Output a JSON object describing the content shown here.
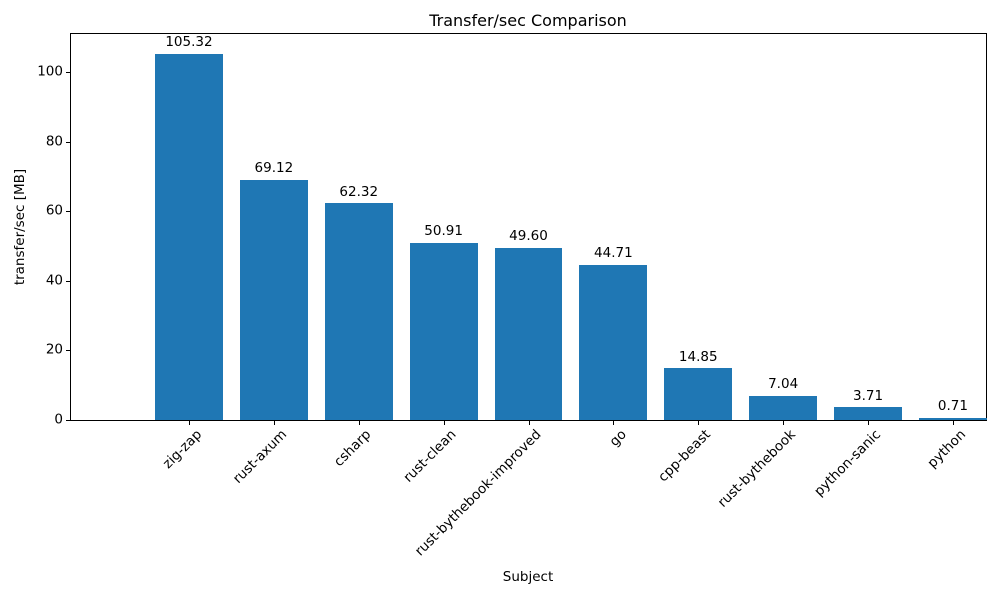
{
  "chart_data": {
    "type": "bar",
    "title": "Transfer/sec Comparison",
    "xlabel": "Subject",
    "ylabel": "transfer/sec [MB]",
    "categories": [
      "zig-zap",
      "rust-axum",
      "csharp",
      "rust-clean",
      "rust-bythebook-improved",
      "go",
      "cpp-beast",
      "rust-bythebook",
      "python-sanic",
      "python"
    ],
    "values": [
      105.32,
      69.12,
      62.32,
      50.91,
      49.6,
      44.71,
      14.85,
      7.04,
      3.71,
      0.71
    ],
    "value_labels": [
      "105.32",
      "69.12",
      "62.32",
      "50.91",
      "49.60",
      "44.71",
      "14.85",
      "7.04",
      "3.71",
      "0.71"
    ],
    "yticks": [
      0,
      20,
      40,
      60,
      80,
      100
    ],
    "ylim": [
      0,
      111
    ],
    "bar_color": "#1f77b4",
    "grid": false,
    "legend_position": "none",
    "x_tick_rotation_deg": 45
  }
}
